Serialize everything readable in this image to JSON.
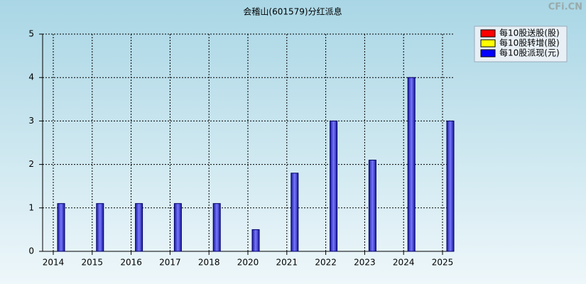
{
  "chart_data": {
    "type": "bar",
    "title": "会稽山(601579)分红派息",
    "watermark": "CFi.CN",
    "categories": [
      "2014",
      "2015",
      "2016",
      "2017",
      "2018",
      "2020",
      "2021",
      "2022",
      "2023",
      "2024",
      "2025"
    ],
    "series": [
      {
        "name": "每10股送股(股)",
        "color": "#ff0000",
        "values": [
          null,
          null,
          null,
          null,
          null,
          null,
          null,
          null,
          null,
          null,
          null
        ]
      },
      {
        "name": "每10股转增(股)",
        "color": "#ffff00",
        "values": [
          null,
          null,
          null,
          null,
          null,
          null,
          null,
          null,
          null,
          null,
          null
        ]
      },
      {
        "name": "每10股派现(元)",
        "color": "#0000ff",
        "values": [
          1.1,
          1.1,
          1.1,
          1.1,
          1.1,
          0.5,
          1.8,
          3,
          2.1,
          4,
          3
        ]
      }
    ],
    "ylim": [
      0,
      5
    ],
    "yticks": [
      0,
      1,
      2,
      3,
      4,
      5
    ],
    "grid": true,
    "legend": "top-right"
  }
}
